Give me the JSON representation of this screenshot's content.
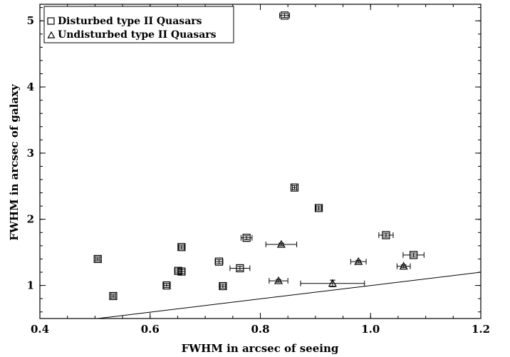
{
  "chart_data": {
    "type": "scatter",
    "title": "",
    "xlabel": "FWHM in arcsec of seeing",
    "ylabel": "FWHM in arcsec of galaxy",
    "xlim": [
      0.4,
      1.2
    ],
    "ylim": [
      0.5,
      5.25
    ],
    "xticks": [
      "0.4",
      "0.6",
      "0.8",
      "1.0",
      "1.2"
    ],
    "yticks": [
      "1",
      "2",
      "3",
      "4",
      "5"
    ],
    "legend_position": "top-left",
    "legend": [
      {
        "symbol": "square",
        "label": "Disturbed type II Quasars"
      },
      {
        "symbol": "triangle",
        "label": "Undisturbed type II Quasars"
      }
    ],
    "line": {
      "x": [
        0.505,
        1.2
      ],
      "y": [
        0.5,
        1.2
      ]
    },
    "series": [
      {
        "symbol": "square",
        "points": [
          {
            "x": 0.505,
            "y": 1.4,
            "xerr": 0.004,
            "yerr": 0.03
          },
          {
            "x": 0.533,
            "y": 0.84,
            "xerr": 0.004,
            "yerr": 0.03
          },
          {
            "x": 0.63,
            "y": 1.0,
            "xerr": 0.005,
            "yerr": 0.03
          },
          {
            "x": 0.651,
            "y": 1.22,
            "xerr": 0.006,
            "yerr": 0.03
          },
          {
            "x": 0.657,
            "y": 1.21,
            "xerr": 0.006,
            "yerr": 0.03
          },
          {
            "x": 0.657,
            "y": 1.58,
            "xerr": 0.005,
            "yerr": 0.03
          },
          {
            "x": 0.725,
            "y": 1.36,
            "xerr": 0.007,
            "yerr": 0.03
          },
          {
            "x": 0.732,
            "y": 0.99,
            "xerr": 0.005,
            "yerr": 0.03
          },
          {
            "x": 0.763,
            "y": 1.26,
            "xerr": 0.018,
            "yerr": 0.03
          },
          {
            "x": 0.775,
            "y": 1.72,
            "xerr": 0.01,
            "yerr": 0.03
          },
          {
            "x": 0.844,
            "y": 5.08,
            "xerr": 0.009,
            "yerr": 0.03
          },
          {
            "x": 0.862,
            "y": 2.48,
            "xerr": 0.004,
            "yerr": 0.03
          },
          {
            "x": 0.906,
            "y": 2.17,
            "xerr": 0.005,
            "yerr": 0.03
          },
          {
            "x": 1.028,
            "y": 1.76,
            "xerr": 0.013,
            "yerr": 0.03
          },
          {
            "x": 1.078,
            "y": 1.46,
            "xerr": 0.019,
            "yerr": 0.03
          }
        ]
      },
      {
        "symbol": "triangle",
        "points": [
          {
            "x": 0.833,
            "y": 1.07,
            "xerr": 0.017,
            "yerr": 0.02
          },
          {
            "x": 0.838,
            "y": 1.62,
            "xerr": 0.028,
            "yerr": 0.02
          },
          {
            "x": 0.931,
            "y": 1.03,
            "xerr": 0.058,
            "yerr": 0.05
          },
          {
            "x": 0.978,
            "y": 1.36,
            "xerr": 0.014,
            "yerr": 0.02
          },
          {
            "x": 1.06,
            "y": 1.29,
            "xerr": 0.012,
            "yerr": 0.02
          }
        ]
      }
    ]
  }
}
